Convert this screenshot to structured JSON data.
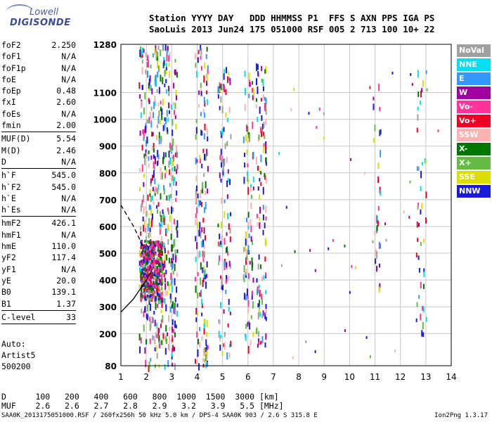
{
  "logo": {
    "line1": "Lowell",
    "line2": "DIGISONDE"
  },
  "header": {
    "line1": "Station YYYY DAY   DDD HHMMSS P1  FFS S AXN PPS IGA PS",
    "line2": "SaoLuis 2013 Jun24 175 051000 RSF 005 2 713 100 10+ 22"
  },
  "params": [
    [
      {
        "name": "foF2",
        "value": "2.250"
      },
      {
        "name": "foF1",
        "value": "N/A"
      },
      {
        "name": "foF1p",
        "value": "N/A"
      },
      {
        "name": "foE",
        "value": "N/A"
      },
      {
        "name": "foEp",
        "value": "0.48"
      },
      {
        "name": "fxI",
        "value": "2.60"
      },
      {
        "name": "foEs",
        "value": "N/A"
      },
      {
        "name": "fmin",
        "value": "2.00"
      }
    ],
    [
      {
        "name": "MUF(D)",
        "value": "5.54"
      },
      {
        "name": "M(D)",
        "value": "2.46"
      },
      {
        "name": "D",
        "value": "N/A"
      }
    ],
    [
      {
        "name": "h`F",
        "value": "545.0"
      },
      {
        "name": "h`F2",
        "value": "545.0"
      },
      {
        "name": "h`E",
        "value": "N/A"
      },
      {
        "name": "h`Es",
        "value": "N/A"
      }
    ],
    [
      {
        "name": "hmF2",
        "value": "426.1"
      },
      {
        "name": "hmF1",
        "value": "N/A"
      },
      {
        "name": "hmE",
        "value": "110.0"
      },
      {
        "name": "yF2",
        "value": "117.4"
      },
      {
        "name": "yF1",
        "value": "N/A"
      },
      {
        "name": "yE",
        "value": "20.0"
      },
      {
        "name": "B0",
        "value": "139.1"
      },
      {
        "name": "B1",
        "value": "1.37"
      }
    ],
    [
      {
        "name": "C-level",
        "value": "33"
      }
    ]
  ],
  "auto": {
    "line1": "Auto:",
    "line2": "Artist5",
    "line3": "500200"
  },
  "dmuf": {
    "d_label": "D",
    "d_values": [
      "100",
      "200",
      "400",
      "600",
      "800",
      "1000",
      "1500",
      "3000"
    ],
    "d_unit": "[km]",
    "muf_label": "MUF",
    "muf_values": [
      "2.6",
      "2.6",
      "2.7",
      "2.8",
      "2.9",
      "3.2",
      "3.9",
      "5.5"
    ],
    "muf_unit": "[MHz]"
  },
  "footer": "SAA0K_2013175051000.RSF / 260fx256h 50 kHz 5.0 km / DPS-4 SAA0K 903 / 2.6 S 315.8 E",
  "version": "Ion2Png 1.3.17",
  "legend": [
    {
      "label": "NoVal",
      "color": "#a0a0a0"
    },
    {
      "label": "NNE",
      "color": "#00e0f0"
    },
    {
      "label": "E",
      "color": "#3399ff"
    },
    {
      "label": "W",
      "color": "#a000a0"
    },
    {
      "label": "Vo-",
      "color": "#ff3399"
    },
    {
      "label": "Vo+",
      "color": "#ee0022"
    },
    {
      "label": "SSW",
      "color": "#ffb0b0"
    },
    {
      "label": "X-",
      "color": "#007700"
    },
    {
      "label": "X+",
      "color": "#66bb44"
    },
    {
      "label": "SSE",
      "color": "#dddd00"
    },
    {
      "label": "NNW",
      "color": "#1a1adc"
    }
  ],
  "chart_data": {
    "type": "scatter",
    "xlim": [
      1,
      14
    ],
    "ylim": [
      80,
      1280
    ],
    "x_ticks": [
      "1",
      "2",
      "3",
      "4",
      "5",
      "6",
      "7",
      "8",
      "9",
      "10",
      "11",
      "12",
      "13",
      "14"
    ],
    "y_ticks": [
      "80",
      "200",
      "300",
      "400",
      "500",
      "600",
      "700",
      "800",
      "900",
      "1000",
      "1100",
      "1280"
    ],
    "grid": true,
    "legend_position": "right",
    "traces": [
      {
        "style": "solid",
        "x": [
          1.0,
          1.5,
          2.0,
          2.3
        ],
        "y": [
          280,
          330,
          400,
          450
        ]
      },
      {
        "style": "dashed",
        "x": [
          1.0,
          1.5,
          1.9
        ],
        "y": [
          680,
          600,
          520
        ]
      }
    ]
  }
}
